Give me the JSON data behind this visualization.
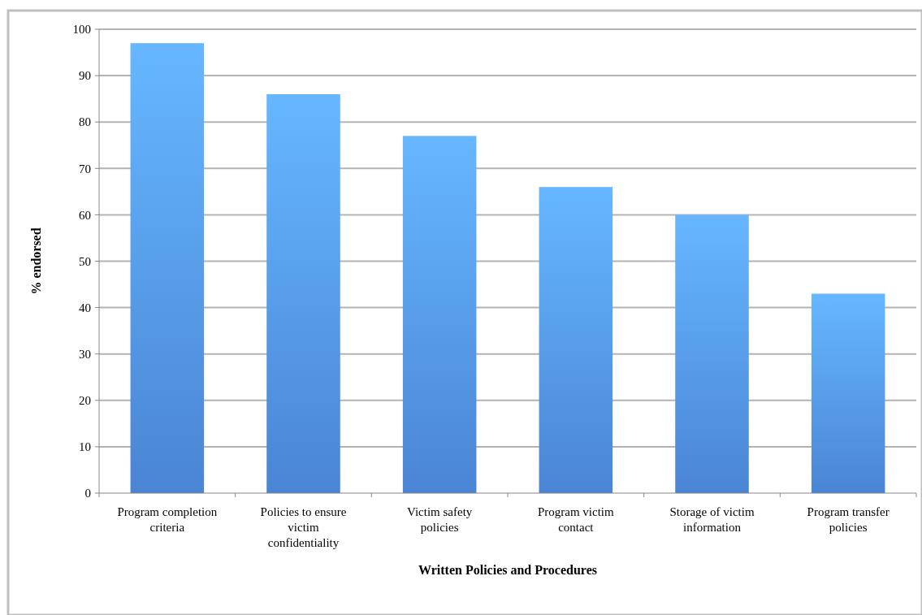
{
  "chart_data": {
    "type": "bar",
    "xlabel": "Written Policies and Procedures",
    "ylabel": "% endorsed",
    "categories": [
      "Program completion criteria",
      "Policies to ensure victim confidentiality",
      "Victim safety policies",
      "Program victim contact",
      "Storage of victim information",
      "Program transfer policies"
    ],
    "values": [
      97,
      86,
      77,
      66,
      60,
      43
    ],
    "color": "#4a85d4",
    "ylim": [
      0,
      100
    ],
    "yticks": [
      0,
      10,
      20,
      30,
      40,
      50,
      60,
      70,
      80,
      90,
      100
    ],
    "grid": "y"
  }
}
